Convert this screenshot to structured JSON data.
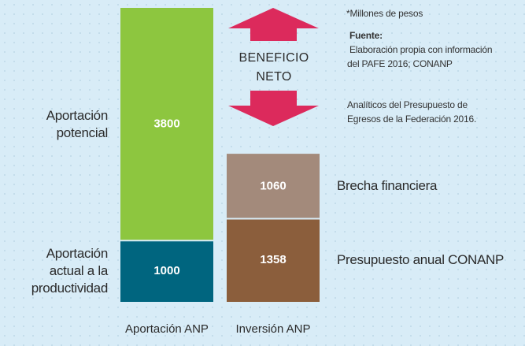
{
  "chart_data": {
    "type": "stacked_bar",
    "categories": [
      "Aportación ANP",
      "Inversión ANP"
    ],
    "series": [
      {
        "name": "Aportación actual a la productividad",
        "color": "#00657f",
        "values": [
          1000,
          null
        ]
      },
      {
        "name": "Aportación potencial",
        "color": "#8dc63f",
        "values": [
          3800,
          null
        ]
      },
      {
        "name": "Presupuesto anual CONANP",
        "color": "#8b5e3c",
        "values": [
          null,
          1358
        ]
      },
      {
        "name": "Brecha financiera",
        "color": "#a38a7b",
        "values": [
          null,
          1060
        ]
      }
    ],
    "annotation": "BENEFICIO NETO",
    "note": "*Millones de pesos",
    "source_title": "Fuente:",
    "source_lines": [
      "Elaboración propia con información",
      "del PAFE 2016; CONANP",
      "Analíticos del Presupuesto de",
      "Egresos de la Federación 2016."
    ]
  }
}
